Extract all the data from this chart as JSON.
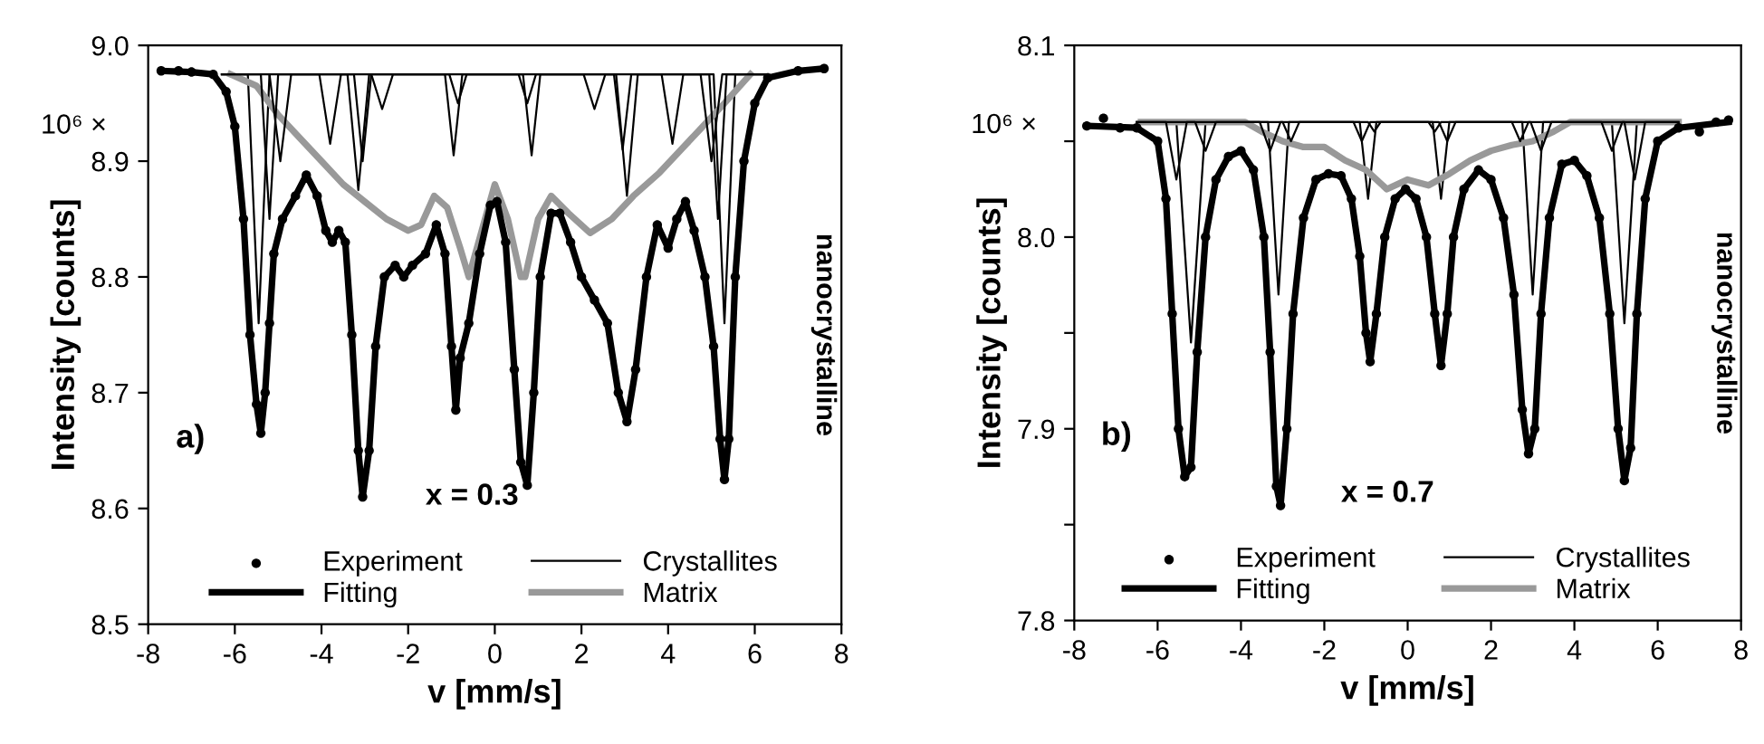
{
  "chart_data": [
    {
      "type": "line",
      "xlabel": "v [mm/s]",
      "ylabel": "Intensity [counts]",
      "xlim": [
        -8,
        8
      ],
      "xticks": [
        -8,
        -6,
        -4,
        -2,
        0,
        2,
        4,
        6,
        8
      ],
      "ylim": [
        8.5,
        9.0
      ],
      "yticks": [
        8.5,
        8.6,
        8.7,
        8.8,
        8.9,
        {
          "value": 9,
          "label": "9.0"
        }
      ],
      "legend": "bottom",
      "grid": false,
      "annotations": [
        "10⁶ ×",
        "a)",
        "x = 0.3",
        "nanocrystalline"
      ],
      "series": [
        {
          "name": "Experiment",
          "type": "scatter",
          "marker": "circle",
          "color": "#000000",
          "x": [
            -7.7,
            -7.3,
            -7,
            -6.5,
            -6.2,
            -6.0,
            -5.8,
            -5.65,
            -5.5,
            -5.4,
            -5.3,
            -5.2,
            -5.1,
            -4.9,
            -4.6,
            -4.35,
            -4.1,
            -3.9,
            -3.75,
            -3.6,
            -3.45,
            -3.3,
            -3.15,
            -3.05,
            -2.9,
            -2.75,
            -2.55,
            -2.3,
            -2.1,
            -1.9,
            -1.6,
            -1.35,
            -1.15,
            -1.0,
            -0.9,
            -0.8,
            -0.6,
            -0.35,
            -0.1,
            0.05,
            0.25,
            0.45,
            0.6,
            0.75,
            0.9,
            1.05,
            1.3,
            1.5,
            1.75,
            2.0,
            2.3,
            2.6,
            2.85,
            3.05,
            3.25,
            3.5,
            3.75,
            4.0,
            4.2,
            4.4,
            4.6,
            4.85,
            5.05,
            5.2,
            5.3,
            5.4,
            5.55,
            5.75,
            6.0,
            6.3,
            7,
            7.6
          ],
          "values": [
            8.978,
            8.978,
            8.977,
            8.975,
            8.96,
            8.93,
            8.85,
            8.75,
            8.69,
            8.665,
            8.7,
            8.76,
            8.82,
            8.85,
            8.87,
            8.888,
            8.87,
            8.84,
            8.83,
            8.84,
            8.83,
            8.75,
            8.65,
            8.61,
            8.65,
            8.74,
            8.8,
            8.81,
            8.8,
            8.81,
            8.82,
            8.845,
            8.82,
            8.74,
            8.685,
            8.73,
            8.76,
            8.82,
            8.862,
            8.865,
            8.83,
            8.72,
            8.64,
            8.62,
            8.7,
            8.8,
            8.855,
            8.855,
            8.83,
            8.8,
            8.78,
            8.76,
            8.7,
            8.675,
            8.72,
            8.8,
            8.845,
            8.825,
            8.85,
            8.865,
            8.84,
            8.8,
            8.74,
            8.66,
            8.625,
            8.66,
            8.8,
            8.9,
            8.95,
            8.972,
            8.978,
            8.98
          ]
        },
        {
          "name": "Fitting",
          "type": "line",
          "color": "#000000",
          "x": [
            -7.7,
            -7,
            -6.5,
            -6.2,
            -6.0,
            -5.8,
            -5.65,
            -5.5,
            -5.4,
            -5.3,
            -5.2,
            -5.1,
            -4.9,
            -4.6,
            -4.35,
            -4.1,
            -3.9,
            -3.75,
            -3.6,
            -3.45,
            -3.3,
            -3.15,
            -3.05,
            -2.9,
            -2.75,
            -2.55,
            -2.3,
            -2.1,
            -1.9,
            -1.6,
            -1.35,
            -1.15,
            -1.0,
            -0.9,
            -0.8,
            -0.6,
            -0.35,
            -0.1,
            0.05,
            0.25,
            0.45,
            0.6,
            0.75,
            0.9,
            1.05,
            1.3,
            1.5,
            1.75,
            2.0,
            2.3,
            2.6,
            2.85,
            3.05,
            3.25,
            3.5,
            3.75,
            4.0,
            4.2,
            4.4,
            4.6,
            4.85,
            5.05,
            5.2,
            5.3,
            5.4,
            5.55,
            5.75,
            6.0,
            6.3,
            7,
            7.6
          ],
          "values": [
            8.978,
            8.977,
            8.975,
            8.96,
            8.93,
            8.85,
            8.75,
            8.69,
            8.665,
            8.7,
            8.76,
            8.82,
            8.85,
            8.87,
            8.888,
            8.87,
            8.84,
            8.83,
            8.84,
            8.83,
            8.75,
            8.65,
            8.61,
            8.65,
            8.74,
            8.8,
            8.81,
            8.8,
            8.81,
            8.82,
            8.845,
            8.82,
            8.74,
            8.685,
            8.73,
            8.76,
            8.82,
            8.862,
            8.865,
            8.83,
            8.72,
            8.64,
            8.62,
            8.7,
            8.8,
            8.855,
            8.855,
            8.83,
            8.8,
            8.78,
            8.76,
            8.7,
            8.675,
            8.72,
            8.8,
            8.845,
            8.825,
            8.85,
            8.865,
            8.84,
            8.8,
            8.74,
            8.66,
            8.625,
            8.66,
            8.8,
            8.9,
            8.95,
            8.972,
            8.978,
            8.98
          ]
        },
        {
          "name": "Crystallites",
          "type": "line",
          "color": "#000000",
          "x": [
            -6.3,
            -5.7,
            -5.45,
            -5.2,
            -3.4,
            -3.15,
            -2.9,
            -1.15,
            -0.95,
            -0.75,
            0.65,
            0.85,
            1.05,
            2.8,
            3.05,
            3.3,
            5.05,
            5.3,
            5.55,
            6.3
          ],
          "values": [
            8.975,
            8.975,
            8.76,
            8.975,
            8.975,
            8.875,
            8.975,
            8.975,
            8.905,
            8.975,
            8.975,
            8.905,
            8.975,
            8.975,
            8.87,
            8.975,
            8.975,
            8.76,
            8.975,
            8.975
          ]
        },
        {
          "name": "Matrix",
          "type": "line",
          "color": "#999999",
          "x": [
            -6.1,
            -5.5,
            -5,
            -4.5,
            -4,
            -3.5,
            -3,
            -2.5,
            -2,
            -1.7,
            -1.4,
            -1.1,
            -0.8,
            -0.6,
            -0.3,
            0,
            0.3,
            0.6,
            0.7,
            1.0,
            1.3,
            1.7,
            2.2,
            2.7,
            3.2,
            3.8,
            4.3,
            4.8,
            5.3,
            5.9
          ],
          "values": [
            8.975,
            8.965,
            8.94,
            8.92,
            8.9,
            8.88,
            8.865,
            8.85,
            8.84,
            8.845,
            8.87,
            8.86,
            8.825,
            8.8,
            8.84,
            8.88,
            8.85,
            8.8,
            8.8,
            8.85,
            8.87,
            8.855,
            8.838,
            8.85,
            8.87,
            8.89,
            8.91,
            8.93,
            8.95,
            8.975
          ]
        },
        {
          "type": "line",
          "color": "#000000",
          "x": [
            -6.3,
            -5.4,
            -5.2,
            -5.0,
            -3.25,
            -3.05,
            -2.85,
            -1.05,
            -0.85,
            -0.65,
            0.55,
            0.75,
            0.95,
            2.75,
            2.95,
            3.15,
            4.95,
            5.15,
            5.35,
            6.3
          ],
          "values": [
            8.975,
            8.975,
            8.85,
            8.975,
            8.975,
            8.9,
            8.975,
            8.975,
            8.95,
            8.975,
            8.975,
            8.95,
            8.975,
            8.975,
            8.91,
            8.975,
            8.975,
            8.85,
            8.975,
            8.975
          ]
        },
        {
          "type": "line",
          "color": "#000000",
          "x": [
            -6.3,
            -5.2,
            -4.95,
            -4.7,
            -4.05,
            -3.8,
            -3.55,
            -2.85,
            -2.6,
            -2.35,
            2.05,
            2.3,
            2.55,
            3.85,
            4.1,
            4.35,
            4.75,
            5.0,
            5.25,
            6.3
          ],
          "values": [
            8.975,
            8.975,
            8.9,
            8.975,
            8.975,
            8.915,
            8.975,
            8.975,
            8.945,
            8.975,
            8.975,
            8.945,
            8.975,
            8.975,
            8.915,
            8.975,
            8.975,
            8.9,
            8.975,
            8.975
          ]
        }
      ]
    },
    {
      "type": "line",
      "xlabel": "v [mm/s]",
      "ylabel": "Intensity [counts]",
      "xlim": [
        -8,
        8
      ],
      "xticks": [
        -8,
        -6,
        -4,
        -2,
        0,
        2,
        4,
        6,
        8
      ],
      "ylim": [
        7.8,
        8.1
      ],
      "yticks": [
        7.8,
        {
          "value": 7.85,
          "label": null
        },
        7.9,
        {
          "value": 7.95,
          "label": null
        },
        {
          "value": 8,
          "label": "8.0"
        },
        {
          "value": 8.05,
          "label": null
        },
        8.1
      ],
      "legend": "bottom",
      "grid": false,
      "annotations": [
        "10⁶ ×",
        "b)",
        "x = 0.7",
        "nanocrystalline"
      ],
      "series": [
        {
          "name": "Experiment",
          "type": "scatter",
          "marker": "circle",
          "color": "#000000",
          "x": [
            -7.7,
            -7.3,
            -6.9,
            -6.5,
            -6.0,
            -5.8,
            -5.65,
            -5.5,
            -5.35,
            -5.2,
            -5.05,
            -4.85,
            -4.6,
            -4.3,
            -4.0,
            -3.7,
            -3.45,
            -3.3,
            -3.15,
            -3.05,
            -2.9,
            -2.75,
            -2.5,
            -2.2,
            -1.9,
            -1.6,
            -1.35,
            -1.15,
            -1.0,
            -0.9,
            -0.75,
            -0.55,
            -0.3,
            -0.05,
            0.2,
            0.45,
            0.65,
            0.8,
            0.95,
            1.1,
            1.35,
            1.7,
            2.0,
            2.3,
            2.55,
            2.75,
            2.9,
            3.05,
            3.2,
            3.4,
            3.7,
            4.0,
            4.3,
            4.6,
            4.85,
            5.05,
            5.2,
            5.35,
            5.5,
            5.7,
            6.0,
            6.5,
            7.0,
            7.4,
            7.7
          ],
          "values": [
            8.058,
            8.062,
            8.057,
            8.057,
            8.05,
            8.02,
            7.96,
            7.9,
            7.875,
            7.88,
            7.94,
            8.0,
            8.03,
            8.042,
            8.045,
            8.035,
            8.0,
            7.94,
            7.87,
            7.86,
            7.9,
            7.96,
            8.01,
            8.03,
            8.033,
            8.032,
            8.02,
            7.99,
            7.95,
            7.935,
            7.96,
            8.0,
            8.02,
            8.025,
            8.02,
            8.0,
            7.96,
            7.933,
            7.96,
            8.0,
            8.025,
            8.035,
            8.03,
            8.01,
            7.97,
            7.91,
            7.887,
            7.9,
            7.96,
            8.01,
            8.038,
            8.04,
            8.032,
            8.01,
            7.96,
            7.9,
            7.873,
            7.89,
            7.96,
            8.02,
            8.05,
            8.057,
            8.055,
            8.06,
            8.061
          ]
        },
        {
          "name": "Fitting",
          "type": "line",
          "color": "#000000",
          "x": [
            -7.7,
            -6.5,
            -6.0,
            -5.8,
            -5.65,
            -5.5,
            -5.35,
            -5.2,
            -5.05,
            -4.85,
            -4.6,
            -4.3,
            -4.0,
            -3.7,
            -3.45,
            -3.3,
            -3.15,
            -3.05,
            -2.9,
            -2.75,
            -2.5,
            -2.2,
            -1.9,
            -1.6,
            -1.35,
            -1.15,
            -1.0,
            -0.9,
            -0.75,
            -0.55,
            -0.3,
            -0.05,
            0.2,
            0.45,
            0.65,
            0.8,
            0.95,
            1.1,
            1.35,
            1.7,
            2.0,
            2.3,
            2.55,
            2.75,
            2.9,
            3.05,
            3.2,
            3.4,
            3.7,
            4.0,
            4.3,
            4.6,
            4.85,
            5.05,
            5.2,
            5.35,
            5.5,
            5.7,
            6.0,
            6.5,
            7.7
          ],
          "values": [
            8.058,
            8.057,
            8.05,
            8.02,
            7.96,
            7.9,
            7.875,
            7.88,
            7.94,
            8.0,
            8.03,
            8.042,
            8.045,
            8.035,
            8.0,
            7.94,
            7.87,
            7.86,
            7.9,
            7.96,
            8.01,
            8.03,
            8.033,
            8.032,
            8.02,
            7.99,
            7.95,
            7.935,
            7.96,
            8.0,
            8.02,
            8.025,
            8.02,
            8.0,
            7.96,
            7.933,
            7.96,
            8.0,
            8.025,
            8.035,
            8.03,
            8.01,
            7.97,
            7.91,
            7.887,
            7.9,
            7.96,
            8.01,
            8.038,
            8.04,
            8.032,
            8.01,
            7.96,
            7.9,
            7.873,
            7.89,
            7.96,
            8.02,
            8.05,
            8.057,
            8.06
          ]
        },
        {
          "name": "Crystallites",
          "type": "line",
          "color": "#000000",
          "x": [
            -6.5,
            -5.55,
            -5.2,
            -4.85,
            -3.35,
            -3.1,
            -2.85,
            -1.15,
            -0.95,
            -0.75,
            0.6,
            0.8,
            1.0,
            2.75,
            3.0,
            3.25,
            4.9,
            5.2,
            5.5,
            6.5
          ],
          "values": [
            8.06,
            8.06,
            7.945,
            8.06,
            8.06,
            7.97,
            8.06,
            8.06,
            8.02,
            8.06,
            8.06,
            8.02,
            8.06,
            8.06,
            7.97,
            8.06,
            8.06,
            7.955,
            8.06,
            8.06
          ]
        },
        {
          "name": "Matrix",
          "type": "line",
          "color": "#999999",
          "x": [
            -6.4,
            -3.9,
            -3.5,
            -3.0,
            -2.5,
            -2,
            -1.5,
            -1,
            -0.5,
            0,
            0.5,
            1,
            1.5,
            2,
            2.5,
            3,
            3.5,
            3.9,
            6.5
          ],
          "values": [
            8.06,
            8.06,
            8.055,
            8.05,
            8.047,
            8.047,
            8.04,
            8.035,
            8.025,
            8.03,
            8.027,
            8.033,
            8.04,
            8.045,
            8.048,
            8.05,
            8.055,
            8.06,
            8.06
          ]
        },
        {
          "type": "line",
          "color": "#000000",
          "x": [
            -6.5,
            -5.8,
            -5.55,
            -5.3,
            -3.55,
            -3.3,
            -3.05,
            -1.3,
            -1.1,
            -0.9,
            0.75,
            0.95,
            1.15,
            2.95,
            3.2,
            3.45,
            5.2,
            5.45,
            5.7,
            6.5
          ],
          "values": [
            8.06,
            8.06,
            8.03,
            8.06,
            8.06,
            8.045,
            8.06,
            8.06,
            8.05,
            8.06,
            8.06,
            8.05,
            8.06,
            8.06,
            8.045,
            8.06,
            8.06,
            8.03,
            8.06,
            8.06
          ]
        },
        {
          "type": "line",
          "color": "#000000",
          "x": [
            -6.5,
            -5.1,
            -4.85,
            -4.6,
            -3.0,
            -2.8,
            -2.6,
            -0.95,
            -0.8,
            -0.65,
            0.5,
            0.65,
            0.8,
            2.5,
            2.7,
            2.9,
            4.65,
            4.9,
            5.15,
            6.5
          ],
          "values": [
            8.06,
            8.06,
            8.045,
            8.06,
            8.06,
            8.05,
            8.06,
            8.06,
            8.055,
            8.06,
            8.06,
            8.055,
            8.06,
            8.06,
            8.05,
            8.06,
            8.06,
            8.045,
            8.06,
            8.06
          ]
        }
      ]
    }
  ]
}
